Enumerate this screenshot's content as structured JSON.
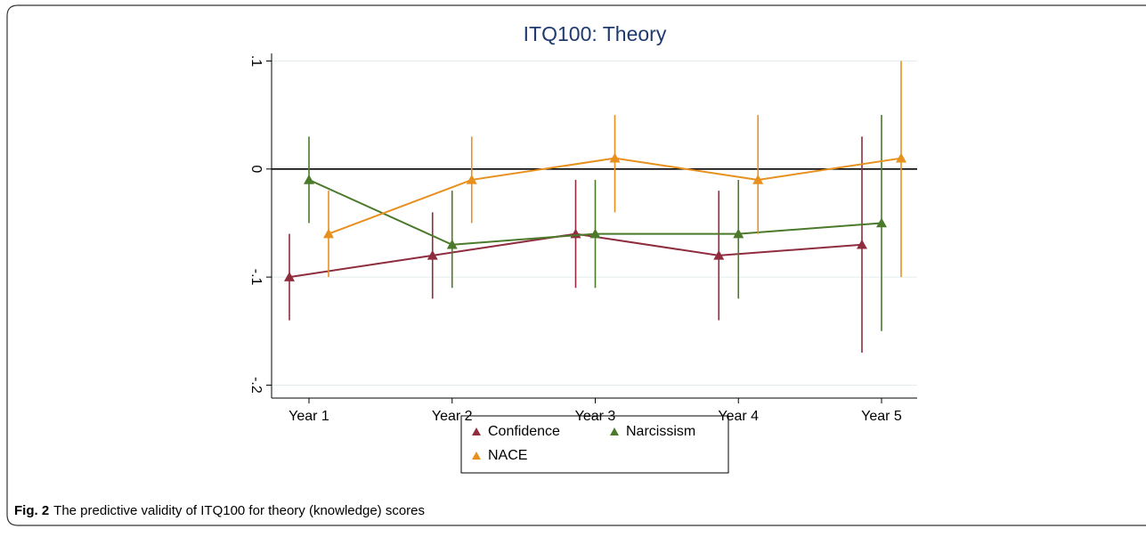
{
  "chart_data": {
    "type": "line",
    "title": "ITQ100: Theory",
    "categories": [
      "Year 1",
      "Year 2",
      "Year 3",
      "Year 4",
      "Year 5"
    ],
    "series": [
      {
        "name": "Confidence",
        "color": "#8f2d3f",
        "values": [
          -0.1,
          -0.08,
          -0.06,
          -0.08,
          -0.07
        ],
        "ci_low": [
          -0.14,
          -0.12,
          -0.11,
          -0.14,
          -0.17
        ],
        "ci_high": [
          -0.06,
          -0.04,
          -0.01,
          -0.02,
          0.03
        ]
      },
      {
        "name": "Narcissism",
        "color": "#4b7a2b",
        "values": [
          -0.01,
          -0.07,
          -0.06,
          -0.06,
          -0.05
        ],
        "ci_low": [
          -0.05,
          -0.11,
          -0.11,
          -0.12,
          -0.15
        ],
        "ci_high": [
          0.03,
          -0.02,
          -0.01,
          -0.01,
          0.05
        ]
      },
      {
        "name": "NACE",
        "color": "#e8901e",
        "values": [
          -0.06,
          -0.01,
          0.01,
          -0.01,
          0.01
        ],
        "ci_low": [
          -0.1,
          -0.05,
          -0.04,
          -0.06,
          -0.1
        ],
        "ci_high": [
          -0.02,
          0.03,
          0.05,
          0.05,
          0.1
        ]
      }
    ],
    "ylim": [
      -0.212,
      0.107
    ],
    "yticks": [
      {
        "value": -0.2,
        "label": "-.2"
      },
      {
        "value": -0.1,
        "label": "-.1"
      },
      0,
      {
        "value": 0.1,
        "label": ".1"
      }
    ],
    "refline": 0,
    "grid": true,
    "legend": "bottom"
  },
  "caption": {
    "label": "Fig. 2",
    "text": "The predictive validity of ITQ100 for theory (knowledge) scores"
  }
}
